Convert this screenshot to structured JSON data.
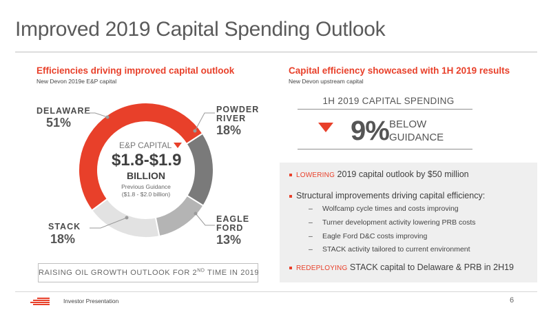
{
  "title": "Improved 2019 Capital Spending Outlook",
  "left": {
    "heading": "Efficiencies driving improved capital outlook",
    "subheading": "New Devon 2019e E&P capital",
    "donut_center": {
      "caption": "E&P CAPITAL",
      "amount": "$1.8-$1.9",
      "unit": "BILLION",
      "prev_line1": "Previous Guidance",
      "prev_line2": "($1.8 - $2.0 billion)"
    },
    "segments": [
      {
        "name_line1": "DELAWARE",
        "name_line2": "",
        "pct_label": "51%",
        "value": 51,
        "color": "#e8402a"
      },
      {
        "name_line1": "POWDER",
        "name_line2": "RIVER",
        "pct_label": "18%",
        "value": 18,
        "color": "#7a7a7a"
      },
      {
        "name_line1": "EAGLE",
        "name_line2": "FORD",
        "pct_label": "13%",
        "value": 13,
        "color": "#b4b4b4"
      },
      {
        "name_line1": "STACK",
        "name_line2": "",
        "pct_label": "18%",
        "value": 18,
        "color": "#e2e2e2"
      }
    ],
    "raise_text": "RAISING OIL GROWTH OUTLOOK FOR 2",
    "raise_sup": "ND",
    "raise_tail": " TIME IN 2019"
  },
  "right": {
    "heading": "Capital efficiency showcased with 1H 2019 results",
    "subheading": "New Devon upstream capital",
    "spend_head": "1H 2019 CAPITAL SPENDING",
    "big_pct": "9%",
    "below_l1": "BELOW",
    "below_l2": "GUIDANCE",
    "bullets": [
      {
        "red": "LOWERING",
        "text": " 2019 capital outlook by $50 million"
      },
      {
        "red": "",
        "text": "Structural improvements driving capital efficiency:"
      },
      {
        "red": "REDEPLOYING",
        "text": " STACK capital to Delaware & PRB in 2H19"
      }
    ],
    "sub_bullets": [
      "Wolfcamp cycle times and costs improving",
      "Turner development activity lowering PRB costs",
      "Eagle Ford D&C costs improving",
      "STACK activity tailored to current environment"
    ]
  },
  "footer": {
    "text": "Investor Presentation",
    "page": "6"
  },
  "colors": {
    "accent": "#e8402a",
    "text": "#3a3a3a"
  },
  "icons": [
    "down-triangle-icon",
    "company-logo"
  ]
}
